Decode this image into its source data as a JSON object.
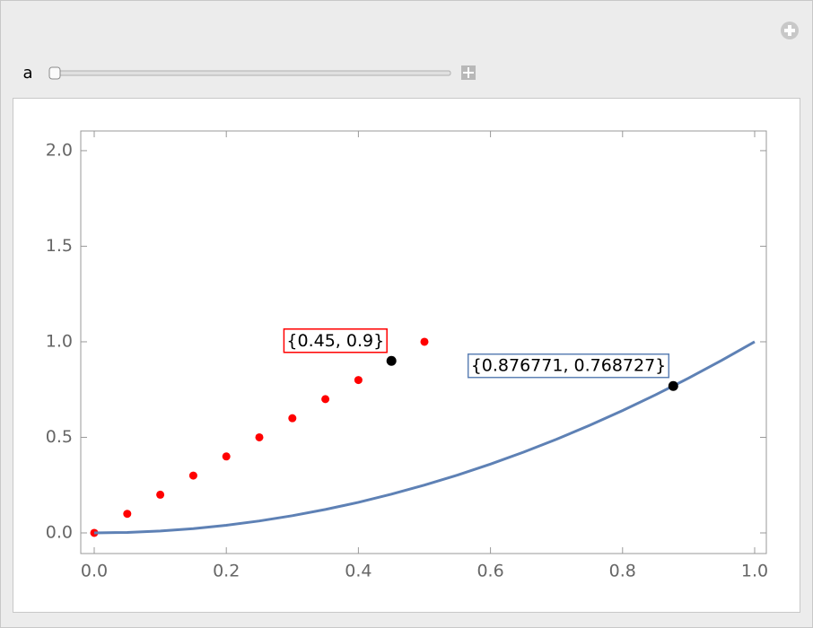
{
  "control": {
    "label": "a"
  },
  "chart_data": {
    "type": "scatter",
    "xlim": [
      -0.0204,
      1.0177
    ],
    "ylim": [
      -0.108,
      2.103
    ],
    "xticks": [
      {
        "value": 0,
        "label": "0.0"
      },
      0.2,
      0.4,
      0.6,
      0.8,
      {
        "value": 1,
        "label": "1.0"
      }
    ],
    "yticks": [
      {
        "value": 0,
        "label": "0.0"
      },
      0.5,
      {
        "value": 1,
        "label": "1.0"
      },
      1.5,
      {
        "value": 2,
        "label": "2.0"
      }
    ],
    "series": [
      {
        "type": "scatter",
        "color": "#ff0000",
        "x": [
          0,
          0.05,
          0.1,
          0.15,
          0.2,
          0.25,
          0.3,
          0.35,
          0.4,
          0.45,
          0.5
        ],
        "values": [
          0,
          0.1,
          0.2,
          0.3,
          0.4,
          0.5,
          0.6,
          0.7,
          0.8,
          0.9,
          1.0
        ]
      },
      {
        "type": "line",
        "color": "#5e81b5",
        "x": [
          0,
          0.05,
          0.1,
          0.15,
          0.2,
          0.25,
          0.3,
          0.35,
          0.4,
          0.45,
          0.5,
          0.55,
          0.6,
          0.65,
          0.7,
          0.75,
          0.8,
          0.85,
          0.9,
          0.95,
          1.0
        ],
        "values": [
          0,
          0.0025,
          0.01,
          0.0225,
          0.04,
          0.0625,
          0.09,
          0.1225,
          0.16,
          0.2025,
          0.25,
          0.3025,
          0.36,
          0.4225,
          0.49,
          0.5625,
          0.64,
          0.7225,
          0.81,
          0.9025,
          1.0
        ]
      },
      {
        "type": "marker",
        "color": "#000000",
        "box_color": "#ff0000",
        "x": [
          0.45
        ],
        "values": [
          0.9
        ],
        "labels": [
          "{0.45, 0.9}"
        ]
      },
      {
        "type": "marker",
        "color": "#000000",
        "box_color": "#5e81b5",
        "x": [
          0.876771
        ],
        "values": [
          0.768727
        ],
        "labels": [
          "{0.876771, 0.768727}"
        ]
      }
    ]
  }
}
